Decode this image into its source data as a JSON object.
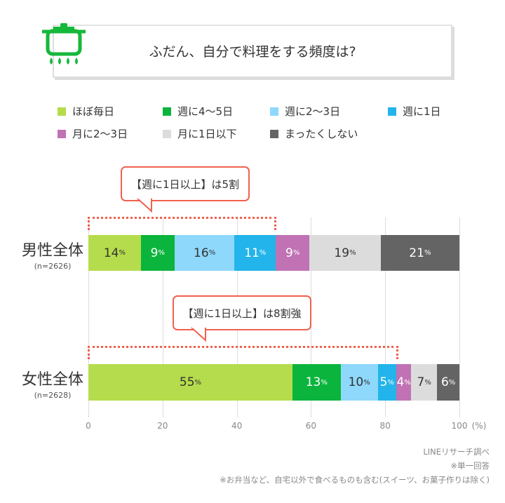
{
  "title": "ふだん、自分で料理をする頻度は?",
  "icon": "cooking-pot-icon",
  "chart_data": {
    "type": "bar",
    "orientation": "horizontal-stacked",
    "title": "ふだん、自分で料理をする頻度は?",
    "legend": [
      "ほぼ毎日",
      "週に4〜5日",
      "週に2〜3日",
      "週に1日",
      "月に2〜3日",
      "月に1日以下",
      "まったくしない"
    ],
    "colors": [
      "#b5dc4c",
      "#0bb43c",
      "#8ed8fc",
      "#22b4ea",
      "#c072b4",
      "#dcdcdc",
      "#646464"
    ],
    "label_colors": [
      "#333333",
      "#ffffff",
      "#333333",
      "#ffffff",
      "#ffffff",
      "#333333",
      "#ffffff"
    ],
    "categories": [
      {
        "label": "男性全体",
        "n": "(n=2626)",
        "values": [
          14,
          9,
          16,
          11,
          9,
          19,
          21
        ],
        "callout": "【週に1日以上】は5割",
        "bracket_to": 50
      },
      {
        "label": "女性全体",
        "n": "(n=2628)",
        "values": [
          55,
          13,
          10,
          5,
          4,
          7,
          6
        ],
        "callout": "【週に1日以上】は8割強",
        "bracket_to": 83
      }
    ],
    "value_unit": "%",
    "xlim": [
      0,
      100
    ],
    "xticks": [
      "0",
      "20",
      "40",
      "60",
      "80",
      "100"
    ],
    "xunit": "(%)",
    "grid": true,
    "legend_position": "top"
  },
  "notes": [
    "LINEリサーチ調べ",
    "※単一回答",
    "※お弁当など、自宅以外で食べるものも含む(スイーツ、お菓子作りは除く)"
  ]
}
